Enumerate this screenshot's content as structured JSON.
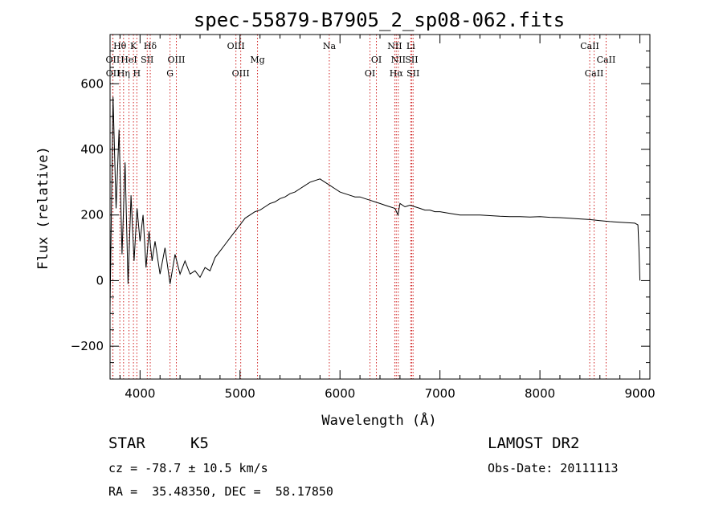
{
  "chart_data": {
    "type": "line",
    "title": "spec-55879-B7905_2_sp08-062.fits",
    "xlabel": "Wavelength (Å)",
    "ylabel": "Flux (relative)",
    "xlim": [
      3700,
      9100
    ],
    "ylim": [
      -300,
      750
    ],
    "xticks": [
      4000,
      5000,
      6000,
      7000,
      8000,
      9000
    ],
    "yticks": [
      -200,
      0,
      200,
      400,
      600
    ],
    "grid": false,
    "colors": {
      "spectrum": "#000000",
      "lines": "#d02020",
      "axes": "#000000"
    },
    "series": [
      {
        "values_note": "",
        "x": [
          3700,
          3730,
          3760,
          3790,
          3820,
          3850,
          3880,
          3910,
          3940,
          3970,
          4000,
          4030,
          4060,
          4090,
          4120,
          4150,
          4200,
          4250,
          4300,
          4350,
          4400,
          4450,
          4500,
          4550,
          4600,
          4650,
          4700,
          4750,
          4800,
          4850,
          4900,
          4950,
          5000,
          5050,
          5100,
          5150,
          5200,
          5250,
          5300,
          5350,
          5400,
          5450,
          5500,
          5550,
          5600,
          5650,
          5700,
          5750,
          5800,
          5850,
          5900,
          5950,
          6000,
          6050,
          6100,
          6150,
          6200,
          6250,
          6300,
          6350,
          6400,
          6450,
          6500,
          6550,
          6580,
          6600,
          6650,
          6700,
          6750,
          6800,
          6850,
          6900,
          6950,
          7000,
          7100,
          7200,
          7300,
          7400,
          7500,
          7600,
          7700,
          7800,
          7900,
          8000,
          8100,
          8200,
          8300,
          8400,
          8500,
          8600,
          8700,
          8800,
          8900,
          8950,
          8980,
          8990,
          9000
        ],
        "y": [
          -80,
          560,
          220,
          460,
          80,
          360,
          -10,
          260,
          60,
          220,
          120,
          200,
          40,
          150,
          60,
          120,
          20,
          100,
          -10,
          80,
          20,
          60,
          20,
          30,
          10,
          40,
          30,
          70,
          90,
          110,
          130,
          150,
          170,
          190,
          200,
          210,
          215,
          225,
          235,
          240,
          250,
          255,
          265,
          270,
          280,
          290,
          300,
          305,
          310,
          300,
          290,
          280,
          270,
          265,
          260,
          255,
          255,
          250,
          245,
          240,
          235,
          230,
          225,
          220,
          200,
          235,
          225,
          230,
          225,
          220,
          215,
          215,
          210,
          210,
          205,
          200,
          200,
          200,
          198,
          196,
          195,
          195,
          194,
          195,
          193,
          192,
          190,
          188,
          186,
          183,
          180,
          178,
          176,
          175,
          170,
          100,
          0
        ]
      }
    ],
    "emission_lines": [
      {
        "label": "Hθ",
        "wave": 3798,
        "row": 1
      },
      {
        "label": "K",
        "wave": 3934,
        "row": 1
      },
      {
        "label": "Hδ",
        "wave": 4102,
        "row": 1
      },
      {
        "label": "OIII",
        "wave": 4959,
        "row": 1
      },
      {
        "label": "Na",
        "wave": 5893,
        "row": 1
      },
      {
        "label": "NII",
        "wave": 6548,
        "row": 1
      },
      {
        "label": "Li",
        "wave": 6708,
        "row": 1
      },
      {
        "label": "CaII",
        "wave": 8498,
        "row": 1
      },
      {
        "label": "OII",
        "wave": 3727,
        "row": 2
      },
      {
        "label": "HeI",
        "wave": 3889,
        "row": 2
      },
      {
        "label": "SII",
        "wave": 4072,
        "row": 2
      },
      {
        "label": "OIII",
        "wave": 4363,
        "row": 2
      },
      {
        "label": "Mg",
        "wave": 5175,
        "row": 2
      },
      {
        "label": "OI",
        "wave": 6364,
        "row": 2
      },
      {
        "label": "NII",
        "wave": 6583,
        "row": 2
      },
      {
        "label": "SII",
        "wave": 6717,
        "row": 2
      },
      {
        "label": "CaII",
        "wave": 8662,
        "row": 2
      },
      {
        "label": "OII",
        "wave": 3729,
        "row": 3
      },
      {
        "label": "Hη",
        "wave": 3835,
        "row": 3
      },
      {
        "label": "H",
        "wave": 3968,
        "row": 3
      },
      {
        "label": "G",
        "wave": 4300,
        "row": 3
      },
      {
        "label": "OIII",
        "wave": 5007,
        "row": 3
      },
      {
        "label": "OI",
        "wave": 6300,
        "row": 3
      },
      {
        "label": "Hα",
        "wave": 6563,
        "row": 3
      },
      {
        "label": "SII",
        "wave": 6731,
        "row": 3
      },
      {
        "label": "CaII",
        "wave": 8542,
        "row": 3
      }
    ]
  },
  "info": {
    "class_label": "STAR",
    "subclass": "K5",
    "survey": "LAMOST DR2",
    "redshift": "cz = -78.7 ± 10.5 km/s",
    "obs_date": "Obs-Date: 20111113",
    "coords": "RA =  35.48350, DEC =  58.17850"
  }
}
